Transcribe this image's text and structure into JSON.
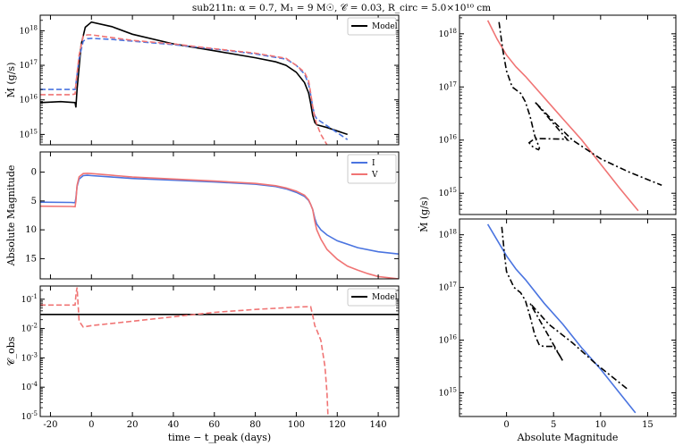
{
  "title": "sub211n: α = 0.7, M₁ = 9 M☉, 𝒞 = 0.03, R_circ = 5.0×10¹⁰ cm",
  "colors": {
    "model": "#000000",
    "I": "#4a74e0",
    "V": "#f07474"
  },
  "chart_data": [
    {
      "id": "mdot_time",
      "type": "line",
      "ylabel": "Ṁ (g/s)",
      "xlim": [
        -25,
        150
      ],
      "ylim_log10": [
        14.7,
        18.45
      ],
      "xticks": [
        -20,
        0,
        20,
        40,
        60,
        80,
        100,
        120,
        140
      ],
      "yticks": [
        {
          "v": 15,
          "label": "10^15"
        },
        {
          "v": 16,
          "label": "10^16"
        },
        {
          "v": 17,
          "label": "10^17"
        },
        {
          "v": 18,
          "label": "10^18"
        }
      ],
      "legend": [
        "Model"
      ],
      "legend_position": "top-right",
      "series": [
        {
          "name": "Model",
          "color": "#000000",
          "style": "solid",
          "log": true,
          "x": [
            -25,
            -15,
            -8,
            -7.6,
            -7,
            -5,
            -3,
            0,
            10,
            20,
            40,
            60,
            80,
            90,
            95,
            100,
            104,
            106,
            107,
            108,
            109,
            110,
            115,
            125
          ],
          "y": [
            15.92,
            15.95,
            15.92,
            15.78,
            16.3,
            17.6,
            18.1,
            18.25,
            18.12,
            17.9,
            17.62,
            17.42,
            17.22,
            17.1,
            17.0,
            16.8,
            16.5,
            16.2,
            15.9,
            15.55,
            15.35,
            15.28,
            15.2,
            15.0
          ]
        },
        {
          "name": "I (dashed)",
          "color": "#4a74e0",
          "style": "dashed",
          "log": true,
          "x": [
            -25,
            -10,
            -8,
            -7.5,
            -6,
            -4,
            -2,
            0,
            10,
            20,
            40,
            60,
            80,
            95,
            100,
            104,
            106,
            107,
            108,
            109,
            110,
            115,
            120,
            125
          ],
          "y": [
            16.3,
            16.3,
            16.3,
            16.5,
            17.2,
            17.7,
            17.77,
            17.78,
            17.75,
            17.7,
            17.6,
            17.47,
            17.33,
            17.18,
            17.0,
            16.75,
            16.45,
            16.15,
            15.8,
            15.55,
            15.45,
            15.25,
            15.05,
            14.85
          ]
        },
        {
          "name": "V (dashed)",
          "color": "#f07474",
          "style": "dashed",
          "log": true,
          "x": [
            -25,
            -10,
            -8,
            -7.5,
            -6,
            -4,
            -2,
            0,
            10,
            20,
            40,
            60,
            80,
            95,
            100,
            104,
            106,
            107,
            108,
            109,
            110,
            112,
            115
          ],
          "y": [
            16.15,
            16.15,
            16.17,
            16.5,
            17.3,
            17.85,
            17.88,
            17.88,
            17.8,
            17.72,
            17.62,
            17.48,
            17.35,
            17.2,
            17.0,
            16.8,
            16.55,
            16.2,
            15.8,
            15.5,
            15.3,
            15.0,
            14.7
          ]
        }
      ]
    },
    {
      "id": "mag_time",
      "type": "line",
      "ylabel": "Absolute Magnitude",
      "xlim": [
        -25,
        150
      ],
      "ylim": [
        18.5,
        -3.5
      ],
      "yticks": [
        0,
        5,
        10,
        15
      ],
      "legend": [
        "I",
        "V"
      ],
      "legend_position": "top-right",
      "series": [
        {
          "name": "I",
          "color": "#4a74e0",
          "style": "solid",
          "x": [
            -25,
            -10,
            -8,
            -7.6,
            -7,
            -6,
            -4,
            -2,
            0,
            10,
            20,
            40,
            60,
            80,
            90,
            95,
            100,
            104,
            106,
            107,
            108,
            109,
            110,
            112,
            115,
            120,
            130,
            140,
            150
          ],
          "y": [
            5.2,
            5.25,
            5.3,
            4.5,
            2.5,
            1.2,
            0.6,
            0.55,
            0.6,
            0.85,
            1.1,
            1.4,
            1.7,
            2.1,
            2.5,
            2.9,
            3.5,
            4.2,
            4.9,
            5.6,
            6.5,
            8.0,
            9.0,
            10.0,
            10.9,
            11.9,
            13.1,
            13.8,
            14.2
          ]
        },
        {
          "name": "V",
          "color": "#f07474",
          "style": "solid",
          "x": [
            -25,
            -10,
            -8,
            -7.6,
            -7,
            -6,
            -4,
            -2,
            0,
            10,
            20,
            40,
            60,
            80,
            90,
            95,
            100,
            104,
            106,
            107,
            108,
            109,
            110,
            112,
            115,
            120,
            125,
            130,
            135,
            140,
            150
          ],
          "y": [
            5.9,
            5.95,
            6.0,
            5.0,
            2.3,
            0.8,
            0.25,
            0.2,
            0.25,
            0.55,
            0.85,
            1.2,
            1.55,
            1.95,
            2.35,
            2.75,
            3.3,
            4.0,
            4.8,
            5.6,
            6.5,
            8.5,
            10.0,
            11.6,
            13.4,
            15.1,
            16.3,
            17.0,
            17.6,
            18.1,
            18.5
          ]
        }
      ]
    },
    {
      "id": "cobs_time",
      "type": "line",
      "ylabel": "𝒞_obs",
      "xlabel": "time − t_peak (days)",
      "xlim": [
        -25,
        150
      ],
      "ylim_log10": [
        -5,
        -0.55
      ],
      "xticks": [
        -20,
        0,
        20,
        40,
        60,
        80,
        100,
        120,
        140
      ],
      "yticks": [
        {
          "v": -1,
          "label": "10^-1"
        },
        {
          "v": -2,
          "label": "10^-2"
        },
        {
          "v": -3,
          "label": "10^-3"
        },
        {
          "v": -4,
          "label": "10^-4"
        },
        {
          "v": -5,
          "label": "10^-5"
        }
      ],
      "legend": [
        "Model"
      ],
      "legend_position": "top-right",
      "series": [
        {
          "name": "Model",
          "color": "#000000",
          "style": "solid",
          "log": true,
          "x": [
            -25,
            150
          ],
          "y": [
            -1.52,
            -1.52
          ]
        },
        {
          "name": "V/I ratio",
          "color": "#f07474",
          "style": "dashed",
          "log": true,
          "x": [
            -25,
            -8,
            -7.5,
            -7,
            -6.5,
            -6,
            -4,
            0,
            20,
            40,
            60,
            80,
            100,
            107,
            108,
            109,
            110,
            112,
            114,
            115,
            115.5
          ],
          "y": [
            -1.2,
            -1.2,
            -0.8,
            -0.6,
            -1.2,
            -1.75,
            -1.95,
            -1.9,
            -1.75,
            -1.6,
            -1.45,
            -1.35,
            -1.27,
            -1.25,
            -1.55,
            -1.9,
            -2.05,
            -2.4,
            -3.3,
            -4.2,
            -5.0
          ]
        }
      ]
    },
    {
      "id": "mdot_mag_V",
      "type": "line",
      "ylabel": "Ṁ (g/s)",
      "xlim": [
        -5,
        18
      ],
      "ylim_log10": [
        14.6,
        18.35
      ],
      "xticks": [
        0,
        5,
        10,
        15
      ],
      "yticks": [
        {
          "v": 15,
          "label": "10^15"
        },
        {
          "v": 16,
          "label": "10^16"
        },
        {
          "v": 17,
          "label": "10^17"
        },
        {
          "v": 18,
          "label": "10^18"
        }
      ],
      "series": [
        {
          "name": "V",
          "color": "#f07474",
          "style": "solid",
          "log": true,
          "x": [
            -2.0,
            -1.0,
            0.0,
            1.0,
            2.0,
            4.0,
            6.0,
            8.0,
            10.0,
            12.0,
            14.0
          ],
          "y": [
            18.25,
            17.9,
            17.6,
            17.38,
            17.2,
            16.8,
            16.4,
            16.0,
            15.55,
            15.1,
            14.67
          ]
        },
        {
          "name": "Model",
          "color": "#000000",
          "style": "dashdot",
          "log": true,
          "x": [
            -0.8,
            -0.4,
            0.0,
            0.6,
            1.5,
            2.0,
            2.5,
            3.0,
            3.5,
            3.4,
            3.0,
            2.6,
            2.4,
            3.0,
            6.0,
            6.5,
            3.0,
            5.0,
            7.0,
            10.0,
            13.0,
            16.5
          ],
          "y": [
            18.22,
            17.7,
            17.3,
            17.0,
            16.88,
            16.72,
            16.45,
            16.08,
            15.85,
            15.82,
            15.85,
            15.9,
            15.95,
            16.03,
            16.02,
            16.0,
            16.72,
            16.35,
            16.0,
            15.65,
            15.4,
            15.15
          ]
        }
      ]
    },
    {
      "id": "mdot_mag_I",
      "type": "line",
      "xlabel": "Absolute Magnitude",
      "xlim": [
        -5,
        18
      ],
      "ylim_log10": [
        14.55,
        18.3
      ],
      "xticks": [
        0,
        5,
        10,
        15
      ],
      "yticks": [
        {
          "v": 15,
          "label": "10^15"
        },
        {
          "v": 16,
          "label": "10^16"
        },
        {
          "v": 17,
          "label": "10^17"
        },
        {
          "v": 18,
          "label": "10^18"
        }
      ],
      "series": [
        {
          "name": "I",
          "color": "#4a74e0",
          "style": "solid",
          "log": true,
          "x": [
            -2.0,
            0.0,
            1.0,
            2.0,
            4.0,
            6.0,
            8.0,
            10.0,
            12.0,
            13.7
          ],
          "y": [
            18.2,
            17.6,
            17.35,
            17.15,
            16.7,
            16.3,
            15.85,
            15.45,
            15.0,
            14.62
          ]
        },
        {
          "name": "Model",
          "color": "#000000",
          "style": "dashdot",
          "log": true,
          "x": [
            -0.5,
            -0.2,
            0.0,
            0.8,
            1.5,
            2.0,
            2.5,
            3.0,
            3.5,
            4.0,
            5.0,
            5.5,
            6.0,
            2.5,
            4.5,
            7.0,
            9.5,
            13.0
          ],
          "y": [
            18.15,
            17.6,
            17.3,
            17.0,
            16.9,
            16.75,
            16.45,
            16.1,
            15.9,
            15.88,
            15.88,
            15.75,
            15.6,
            16.7,
            16.3,
            15.95,
            15.55,
            15.05
          ]
        }
      ]
    }
  ]
}
